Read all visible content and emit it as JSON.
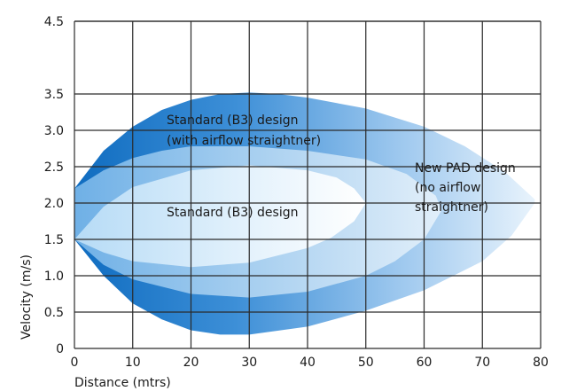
{
  "chart_data": {
    "type": "area",
    "title": "",
    "xlabel": "Distance (mtrs)",
    "ylabel": "Velocity (m/s)",
    "xlim": [
      0,
      80
    ],
    "ylim": [
      0,
      4.5
    ],
    "xticks": [
      0,
      10,
      20,
      30,
      40,
      50,
      60,
      70,
      80
    ],
    "yticks": [
      "0",
      "0.5",
      "1.0",
      "1.5",
      "2.0",
      "2.5",
      "3.0",
      "3.5",
      "4.5"
    ],
    "ytick_values": [
      0,
      0.5,
      1.0,
      1.5,
      2.0,
      2.5,
      3.0,
      3.5,
      4.5
    ],
    "grid": true,
    "series": [
      {
        "name": "New PAD design (no airflow straightner)",
        "color": "#1874c4",
        "upper": [
          [
            0,
            2.2
          ],
          [
            5,
            2.72
          ],
          [
            10,
            3.05
          ],
          [
            15,
            3.28
          ],
          [
            20,
            3.42
          ],
          [
            25,
            3.5
          ],
          [
            30,
            3.52
          ],
          [
            35,
            3.5
          ],
          [
            40,
            3.45
          ],
          [
            50,
            3.3
          ],
          [
            60,
            3.05
          ],
          [
            67,
            2.78
          ],
          [
            74,
            2.42
          ],
          [
            79,
            2.05
          ]
        ],
        "lower": [
          [
            79,
            2.0
          ],
          [
            75,
            1.55
          ],
          [
            70,
            1.2
          ],
          [
            60,
            0.8
          ],
          [
            50,
            0.52
          ],
          [
            40,
            0.3
          ],
          [
            30,
            0.19
          ],
          [
            25,
            0.19
          ],
          [
            20,
            0.25
          ],
          [
            15,
            0.4
          ],
          [
            10,
            0.62
          ],
          [
            5,
            1.0
          ],
          [
            0,
            1.5
          ]
        ]
      },
      {
        "name": "Standard (B3) design (with airflow straightner)",
        "color": "#3f92d8",
        "upper": [
          [
            0,
            2.2
          ],
          [
            5,
            2.45
          ],
          [
            10,
            2.62
          ],
          [
            15,
            2.72
          ],
          [
            20,
            2.78
          ],
          [
            30,
            2.78
          ],
          [
            40,
            2.72
          ],
          [
            50,
            2.6
          ],
          [
            57,
            2.4
          ],
          [
            62,
            2.1
          ],
          [
            63,
            1.9
          ]
        ],
        "lower": [
          [
            63,
            1.9
          ],
          [
            60,
            1.5
          ],
          [
            55,
            1.2
          ],
          [
            50,
            1.0
          ],
          [
            40,
            0.78
          ],
          [
            30,
            0.7
          ],
          [
            20,
            0.75
          ],
          [
            10,
            0.95
          ],
          [
            5,
            1.15
          ],
          [
            0,
            1.5
          ]
        ]
      },
      {
        "name": "Standard (B3) design",
        "color": "#7ab8e8",
        "upper": [
          [
            0,
            1.5
          ],
          [
            5,
            1.95
          ],
          [
            10,
            2.22
          ],
          [
            20,
            2.45
          ],
          [
            30,
            2.52
          ],
          [
            40,
            2.45
          ],
          [
            45,
            2.35
          ],
          [
            48,
            2.2
          ],
          [
            50,
            2.0
          ]
        ],
        "lower": [
          [
            50,
            2.0
          ],
          [
            48,
            1.75
          ],
          [
            44,
            1.52
          ],
          [
            40,
            1.38
          ],
          [
            30,
            1.18
          ],
          [
            20,
            1.12
          ],
          [
            10,
            1.2
          ],
          [
            5,
            1.32
          ],
          [
            0,
            1.5
          ]
        ]
      }
    ],
    "annotations": [
      {
        "line1": "Standard (B3) design",
        "line2": "(with airflow straightner)",
        "line3": ""
      },
      {
        "line1": "Standard (B3) design",
        "line2": "",
        "line3": ""
      },
      {
        "line1": "New PAD design",
        "line2": "(no airflow",
        "line3": "straightner)"
      }
    ]
  }
}
